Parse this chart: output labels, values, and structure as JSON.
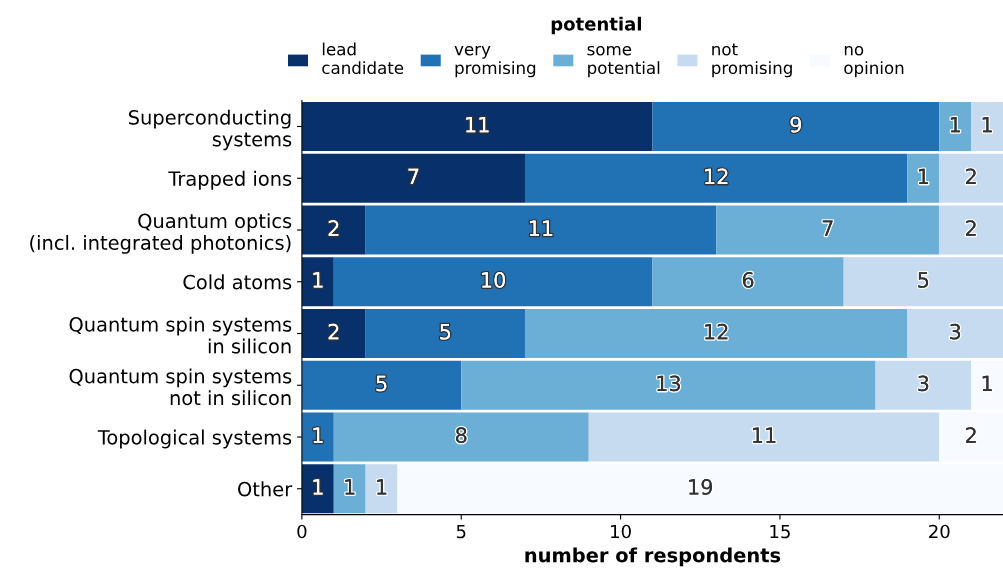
{
  "chart_data": {
    "type": "bar",
    "orientation": "horizontal",
    "stacked": true,
    "data_labels": true,
    "legend": "top",
    "legend_title": "potential",
    "grid": false,
    "xlabel": "number of respondents",
    "xlim": [
      0,
      22
    ],
    "xticks": [
      0,
      5,
      10,
      15,
      20
    ],
    "categories": [
      "Superconducting\nsystems",
      "Trapped ions",
      "Quantum optics\n(incl. integrated photonics)",
      "Cold atoms",
      "Quantum spin systems\nin silicon",
      "Quantum spin systems\nnot in silicon",
      "Topological systems",
      "Other"
    ],
    "series": [
      {
        "name": "lead\ncandidate",
        "color": "#08306b",
        "values": [
          11,
          7,
          2,
          1,
          2,
          null,
          null,
          1
        ]
      },
      {
        "name": "very\npromising",
        "color": "#2171b5",
        "values": [
          9,
          12,
          11,
          10,
          5,
          5,
          1,
          null
        ]
      },
      {
        "name": "some\npotential",
        "color": "#6baed6",
        "values": [
          1,
          1,
          7,
          6,
          12,
          13,
          8,
          1
        ]
      },
      {
        "name": "not\npromising",
        "color": "#c6dbef",
        "values": [
          1,
          2,
          2,
          5,
          3,
          3,
          11,
          1
        ]
      },
      {
        "name": "no\nopinion",
        "color": "#f7fbff",
        "values": [
          null,
          null,
          null,
          null,
          null,
          1,
          2,
          19
        ]
      }
    ]
  }
}
